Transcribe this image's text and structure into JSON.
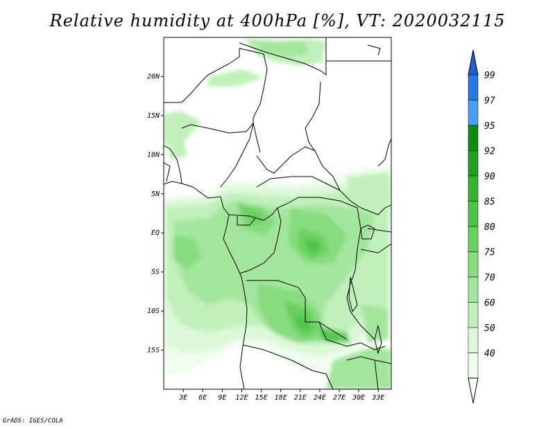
{
  "title": "Relative humidity at 400hPa [%], VT: 2020032115",
  "credit": "GrADS: IGES/COLA",
  "map": {
    "lon_range": [
      0,
      35
    ],
    "lat_range": [
      -20,
      25
    ],
    "lat_ticks": [
      {
        "value": 20,
        "label": "20N"
      },
      {
        "value": 15,
        "label": "15N"
      },
      {
        "value": 10,
        "label": "10N"
      },
      {
        "value": 5,
        "label": "5N"
      },
      {
        "value": 0,
        "label": "EQ"
      },
      {
        "value": -5,
        "label": "5S"
      },
      {
        "value": -10,
        "label": "10S"
      },
      {
        "value": -15,
        "label": "15S"
      }
    ],
    "lon_ticks": [
      {
        "value": 3,
        "label": "3E"
      },
      {
        "value": 6,
        "label": "6E"
      },
      {
        "value": 9,
        "label": "9E"
      },
      {
        "value": 12,
        "label": "12E"
      },
      {
        "value": 15,
        "label": "15E"
      },
      {
        "value": 18,
        "label": "18E"
      },
      {
        "value": 21,
        "label": "21E"
      },
      {
        "value": 24,
        "label": "24E"
      },
      {
        "value": 27,
        "label": "27E"
      },
      {
        "value": 30,
        "label": "30E"
      },
      {
        "value": 33,
        "label": "33E"
      }
    ]
  },
  "colorbar": {
    "levels": [
      {
        "label": "40",
        "color": "#f0fdee"
      },
      {
        "label": "50",
        "color": "#dcf8d8"
      },
      {
        "label": "60",
        "color": "#c1f0bb"
      },
      {
        "label": "70",
        "color": "#a3e69b"
      },
      {
        "label": "75",
        "color": "#86dc7e"
      },
      {
        "label": "80",
        "color": "#6ad061"
      },
      {
        "label": "85",
        "color": "#4fc348"
      },
      {
        "label": "90",
        "color": "#36b230"
      },
      {
        "label": "92",
        "color": "#209e1f"
      },
      {
        "label": "95",
        "color": "#0f8a12"
      },
      {
        "label": "97",
        "color": "#4a9ef0"
      },
      {
        "label": "99",
        "color": "#2a78dc"
      }
    ],
    "top_color": "#1f5ecb",
    "bottom_color": "#ffffff"
  }
}
